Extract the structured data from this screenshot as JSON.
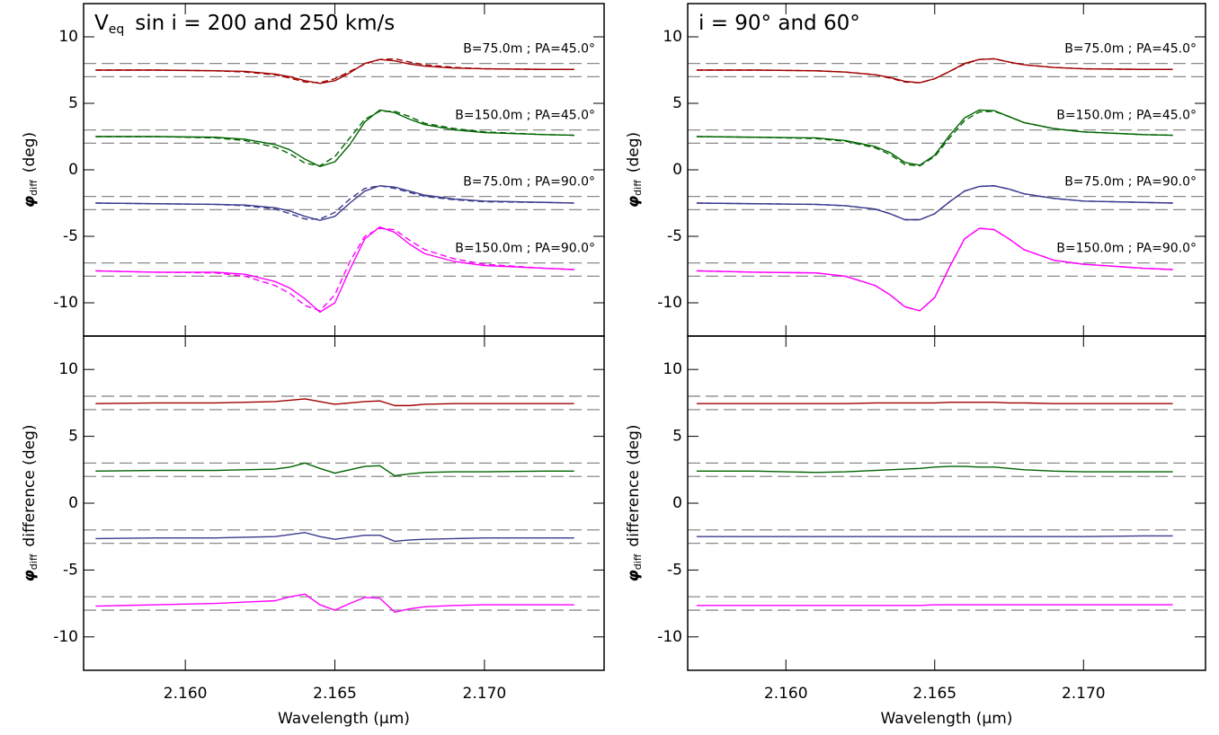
{
  "chart_data": [
    {
      "type": "line",
      "title": {
        "text": "V",
        "subscript": "eq",
        "rest": "sin i = 200 and 250 km/s"
      },
      "ylabel": {
        "symbol": "φ",
        "subscript": "diff",
        "text": "(deg)"
      },
      "xlim": [
        2.1566,
        2.174
      ],
      "ylim": [
        -12.5,
        12.5
      ],
      "xticks": [
        {
          "value": 2.16,
          "label": "2.160"
        },
        {
          "value": 2.165,
          "label": "2.165"
        },
        {
          "value": 2.17,
          "label": "2.170"
        }
      ],
      "yticks": [
        10,
        5,
        0,
        -5,
        -10
      ],
      "reference_lines": [
        8,
        7,
        3,
        2,
        -2,
        -3,
        -7,
        -8
      ],
      "annotations": [
        "B=75.0m ; PA=45.0°",
        "B=150.0m ; PA=45.0°",
        "B=75.0m ; PA=90.0°",
        "B=150.0m ; PA=90.0°"
      ],
      "x": [
        2.157,
        2.159,
        2.161,
        2.162,
        2.163,
        2.1635,
        2.164,
        2.1645,
        2.165,
        2.1655,
        2.166,
        2.1665,
        2.167,
        2.1675,
        2.168,
        2.169,
        2.17,
        2.172,
        2.173
      ],
      "series": [
        {
          "color": "#a00000",
          "dashed": false,
          "values": [
            7.5,
            7.5,
            7.45,
            7.4,
            7.2,
            7.0,
            6.7,
            6.5,
            6.7,
            7.3,
            8.0,
            8.3,
            8.2,
            7.95,
            7.8,
            7.65,
            7.6,
            7.55,
            7.55
          ]
        },
        {
          "color": "#a00000",
          "dashed": true,
          "values": [
            7.5,
            7.5,
            7.45,
            7.35,
            7.15,
            6.9,
            6.6,
            6.55,
            6.85,
            7.4,
            7.95,
            8.3,
            8.35,
            8.1,
            7.9,
            7.7,
            7.6,
            7.55,
            7.55
          ]
        },
        {
          "color": "#006400",
          "dashed": false,
          "values": [
            2.5,
            2.5,
            2.45,
            2.3,
            1.9,
            1.5,
            0.8,
            0.25,
            0.6,
            1.9,
            3.6,
            4.5,
            4.3,
            3.8,
            3.4,
            3.0,
            2.8,
            2.65,
            2.6
          ]
        },
        {
          "color": "#006400",
          "dashed": true,
          "values": [
            2.5,
            2.5,
            2.4,
            2.2,
            1.7,
            1.2,
            0.5,
            0.3,
            1.0,
            2.4,
            3.8,
            4.4,
            4.4,
            4.0,
            3.5,
            3.1,
            2.85,
            2.65,
            2.6
          ]
        },
        {
          "color": "#3a3a8c",
          "dashed": false,
          "values": [
            -2.5,
            -2.55,
            -2.6,
            -2.65,
            -2.85,
            -3.1,
            -3.5,
            -3.8,
            -3.5,
            -2.5,
            -1.6,
            -1.2,
            -1.3,
            -1.6,
            -1.9,
            -2.2,
            -2.35,
            -2.45,
            -2.5
          ]
        },
        {
          "color": "#3a3a8c",
          "dashed": true,
          "values": [
            -2.5,
            -2.55,
            -2.6,
            -2.7,
            -2.95,
            -3.3,
            -3.7,
            -3.7,
            -3.2,
            -2.2,
            -1.4,
            -1.2,
            -1.4,
            -1.7,
            -2.0,
            -2.25,
            -2.4,
            -2.45,
            -2.5
          ]
        },
        {
          "color": "#ff00ff",
          "dashed": false,
          "values": [
            -7.6,
            -7.7,
            -7.7,
            -7.85,
            -8.4,
            -8.9,
            -9.7,
            -10.7,
            -10.0,
            -7.5,
            -5.2,
            -4.3,
            -4.7,
            -5.6,
            -6.3,
            -6.9,
            -7.2,
            -7.4,
            -7.5
          ]
        },
        {
          "color": "#ff00ff",
          "dashed": true,
          "values": [
            -7.6,
            -7.7,
            -7.75,
            -8.0,
            -8.7,
            -9.3,
            -10.2,
            -10.6,
            -9.4,
            -6.9,
            -5.0,
            -4.4,
            -4.5,
            -5.3,
            -6.0,
            -6.7,
            -7.1,
            -7.4,
            -7.5
          ]
        }
      ]
    },
    {
      "type": "line",
      "title": {
        "text": "i = 90° and 60°"
      },
      "ylabel": {
        "symbol": "φ",
        "subscript": "diff",
        "text": "(deg)"
      },
      "xlim": [
        2.1567,
        2.1741
      ],
      "ylim": [
        -12.5,
        12.5
      ],
      "xticks": [
        {
          "value": 2.16,
          "label": "2.160"
        },
        {
          "value": 2.165,
          "label": "2.165"
        },
        {
          "value": 2.17,
          "label": "2.170"
        }
      ],
      "yticks": [
        10,
        5,
        0,
        -5,
        -10
      ],
      "reference_lines": [
        8,
        7,
        3,
        2,
        -2,
        -3,
        -7,
        -8
      ],
      "annotations": [
        "B=75.0m ; PA=45.0°",
        "B=150.0m ; PA=45.0°",
        "B=75.0m ; PA=90.0°",
        "B=150.0m ; PA=90.0°"
      ],
      "x": [
        2.157,
        2.159,
        2.161,
        2.162,
        2.163,
        2.1635,
        2.164,
        2.1645,
        2.165,
        2.1655,
        2.166,
        2.1665,
        2.167,
        2.1675,
        2.168,
        2.169,
        2.17,
        2.172,
        2.173
      ],
      "series": [
        {
          "color": "#a00000",
          "dashed": false,
          "values": [
            7.5,
            7.5,
            7.45,
            7.35,
            7.15,
            6.95,
            6.65,
            6.55,
            6.85,
            7.4,
            8.0,
            8.3,
            8.35,
            8.1,
            7.9,
            7.7,
            7.6,
            7.55,
            7.55
          ]
        },
        {
          "color": "#a00000",
          "dashed": true,
          "values": [
            7.5,
            7.5,
            7.45,
            7.35,
            7.15,
            6.9,
            6.6,
            6.55,
            6.85,
            7.4,
            7.95,
            8.3,
            8.35,
            8.1,
            7.9,
            7.7,
            7.6,
            7.55,
            7.55
          ]
        },
        {
          "color": "#006400",
          "dashed": false,
          "values": [
            2.5,
            2.45,
            2.4,
            2.2,
            1.75,
            1.3,
            0.55,
            0.35,
            1.1,
            2.6,
            3.9,
            4.5,
            4.45,
            4.0,
            3.55,
            3.1,
            2.85,
            2.65,
            2.6
          ]
        },
        {
          "color": "#006400",
          "dashed": true,
          "values": [
            2.5,
            2.45,
            2.35,
            2.15,
            1.65,
            1.15,
            0.4,
            0.3,
            1.0,
            2.4,
            3.7,
            4.35,
            4.4,
            4.0,
            3.55,
            3.1,
            2.85,
            2.65,
            2.6
          ]
        },
        {
          "color": "#3a3a8c",
          "dashed": false,
          "values": [
            -2.5,
            -2.55,
            -2.6,
            -2.7,
            -2.95,
            -3.3,
            -3.75,
            -3.75,
            -3.3,
            -2.4,
            -1.6,
            -1.25,
            -1.2,
            -1.45,
            -1.8,
            -2.15,
            -2.35,
            -2.45,
            -2.5
          ]
        },
        {
          "color": "#3a3a8c",
          "dashed": true,
          "values": [
            -2.5,
            -2.55,
            -2.6,
            -2.7,
            -2.95,
            -3.3,
            -3.75,
            -3.75,
            -3.3,
            -2.4,
            -1.6,
            -1.25,
            -1.2,
            -1.45,
            -1.8,
            -2.15,
            -2.35,
            -2.45,
            -2.5
          ]
        },
        {
          "color": "#ff00ff",
          "dashed": false,
          "values": [
            -7.6,
            -7.7,
            -7.75,
            -8.0,
            -8.7,
            -9.4,
            -10.3,
            -10.6,
            -9.6,
            -7.3,
            -5.2,
            -4.4,
            -4.5,
            -5.2,
            -6.0,
            -6.8,
            -7.1,
            -7.4,
            -7.5
          ]
        },
        {
          "color": "#ff00ff",
          "dashed": true,
          "values": [
            -7.6,
            -7.7,
            -7.75,
            -8.0,
            -8.7,
            -9.4,
            -10.3,
            -10.6,
            -9.6,
            -7.3,
            -5.2,
            -4.4,
            -4.5,
            -5.2,
            -6.0,
            -6.8,
            -7.1,
            -7.4,
            -7.5
          ]
        }
      ]
    },
    {
      "type": "line",
      "ylabel": {
        "symbol": "φ",
        "subscript": "diff",
        "text": "difference (deg)"
      },
      "xlabel": "Wavelength (μm)",
      "xlim": [
        2.1566,
        2.174
      ],
      "ylim": [
        -12.5,
        12.5
      ],
      "xticks": [
        {
          "value": 2.16,
          "label": "2.160"
        },
        {
          "value": 2.165,
          "label": "2.165"
        },
        {
          "value": 2.17,
          "label": "2.170"
        }
      ],
      "yticks": [
        10,
        5,
        0,
        -5,
        -10
      ],
      "reference_lines": [
        8,
        7,
        3,
        2,
        -2,
        -3,
        -7,
        -8
      ],
      "x": [
        2.157,
        2.159,
        2.161,
        2.162,
        2.163,
        2.1635,
        2.164,
        2.1645,
        2.165,
        2.1655,
        2.166,
        2.1665,
        2.167,
        2.1675,
        2.168,
        2.169,
        2.17,
        2.172,
        2.173
      ],
      "series": [
        {
          "color": "#a00000",
          "dashed": false,
          "values": [
            7.45,
            7.5,
            7.5,
            7.55,
            7.6,
            7.7,
            7.8,
            7.6,
            7.4,
            7.5,
            7.6,
            7.65,
            7.3,
            7.3,
            7.4,
            7.45,
            7.45,
            7.45,
            7.45
          ]
        },
        {
          "color": "#006400",
          "dashed": false,
          "values": [
            2.4,
            2.45,
            2.45,
            2.5,
            2.55,
            2.7,
            3.0,
            2.6,
            2.25,
            2.5,
            2.75,
            2.8,
            2.05,
            2.2,
            2.3,
            2.35,
            2.35,
            2.4,
            2.4
          ]
        },
        {
          "color": "#3a3a8c",
          "dashed": false,
          "values": [
            -2.65,
            -2.6,
            -2.6,
            -2.55,
            -2.5,
            -2.35,
            -2.2,
            -2.5,
            -2.7,
            -2.55,
            -2.4,
            -2.4,
            -2.85,
            -2.75,
            -2.7,
            -2.65,
            -2.6,
            -2.6,
            -2.6
          ]
        },
        {
          "color": "#ff00ff",
          "dashed": false,
          "values": [
            -7.7,
            -7.6,
            -7.5,
            -7.4,
            -7.3,
            -7.0,
            -6.8,
            -7.6,
            -8.0,
            -7.5,
            -7.05,
            -7.1,
            -8.15,
            -7.9,
            -7.75,
            -7.65,
            -7.6,
            -7.6,
            -7.6
          ]
        }
      ]
    },
    {
      "type": "line",
      "ylabel": {
        "symbol": "φ",
        "subscript": "diff",
        "text": "difference (deg)"
      },
      "xlabel": "Wavelength (μm)",
      "xlim": [
        2.1567,
        2.1741
      ],
      "ylim": [
        -12.5,
        12.5
      ],
      "xticks": [
        {
          "value": 2.16,
          "label": "2.160"
        },
        {
          "value": 2.165,
          "label": "2.165"
        },
        {
          "value": 2.17,
          "label": "2.170"
        }
      ],
      "yticks": [
        10,
        5,
        0,
        -5,
        -10
      ],
      "reference_lines": [
        8,
        7,
        3,
        2,
        -2,
        -3,
        -7,
        -8
      ],
      "x": [
        2.157,
        2.159,
        2.161,
        2.162,
        2.163,
        2.1635,
        2.164,
        2.1645,
        2.165,
        2.1655,
        2.166,
        2.1665,
        2.167,
        2.1675,
        2.168,
        2.169,
        2.17,
        2.172,
        2.173
      ],
      "series": [
        {
          "color": "#a00000",
          "dashed": false,
          "values": [
            7.45,
            7.45,
            7.45,
            7.45,
            7.5,
            7.5,
            7.5,
            7.5,
            7.5,
            7.55,
            7.55,
            7.55,
            7.55,
            7.5,
            7.5,
            7.45,
            7.45,
            7.45,
            7.45
          ]
        },
        {
          "color": "#006400",
          "dashed": false,
          "values": [
            2.4,
            2.4,
            2.3,
            2.35,
            2.45,
            2.5,
            2.55,
            2.6,
            2.7,
            2.75,
            2.75,
            2.7,
            2.7,
            2.6,
            2.5,
            2.4,
            2.35,
            2.35,
            2.35
          ]
        },
        {
          "color": "#3a3a8c",
          "dashed": false,
          "values": [
            -2.5,
            -2.5,
            -2.5,
            -2.5,
            -2.5,
            -2.5,
            -2.5,
            -2.5,
            -2.5,
            -2.5,
            -2.5,
            -2.5,
            -2.5,
            -2.5,
            -2.5,
            -2.5,
            -2.5,
            -2.45,
            -2.45
          ]
        },
        {
          "color": "#ff00ff",
          "dashed": false,
          "values": [
            -7.65,
            -7.65,
            -7.65,
            -7.65,
            -7.65,
            -7.65,
            -7.65,
            -7.65,
            -7.6,
            -7.6,
            -7.6,
            -7.6,
            -7.6,
            -7.6,
            -7.6,
            -7.6,
            -7.6,
            -7.6,
            -7.6
          ]
        }
      ]
    }
  ]
}
